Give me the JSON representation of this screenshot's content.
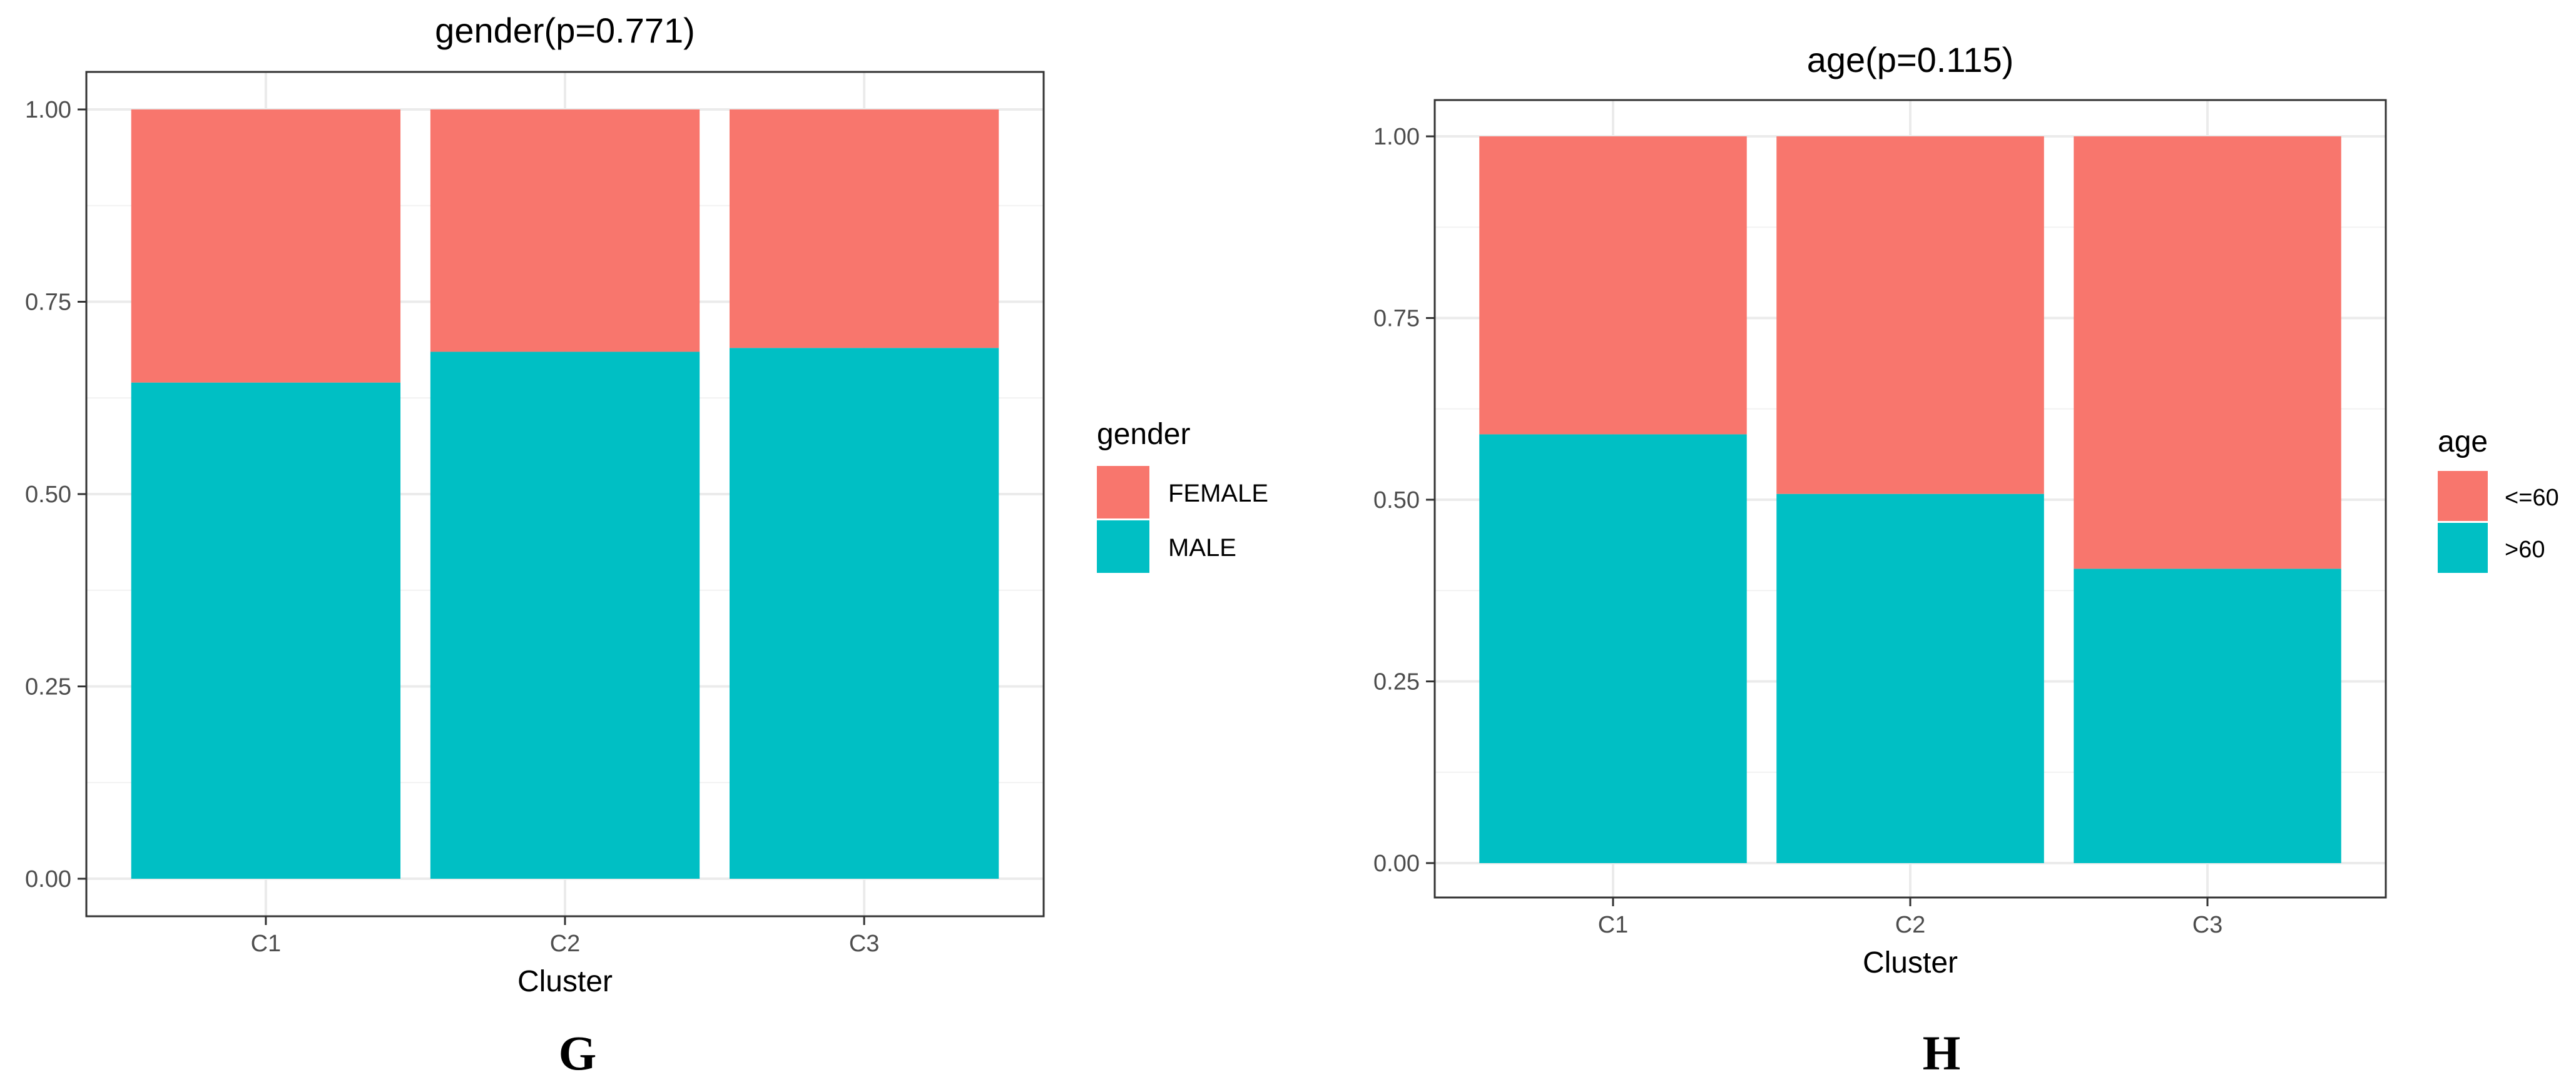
{
  "chart_data": [
    {
      "type": "bar",
      "stacked": true,
      "title": "gender(p=0.771)",
      "panel_label": "G",
      "xlabel": "Cluster",
      "ylabel": "",
      "categories": [
        "C1",
        "C2",
        "C3"
      ],
      "ylim": [
        0,
        1
      ],
      "yticks": [
        "0.00",
        "0.25",
        "0.50",
        "0.75",
        "1.00"
      ],
      "grid": true,
      "legend": {
        "title": "gender",
        "position": "right",
        "entries": [
          "FEMALE",
          "MALE"
        ]
      },
      "series": [
        {
          "name": "MALE",
          "color": "#00BFC4",
          "values": [
            0.645,
            0.685,
            0.69
          ]
        },
        {
          "name": "FEMALE",
          "color": "#F8766D",
          "values": [
            0.355,
            0.315,
            0.31
          ]
        }
      ]
    },
    {
      "type": "bar",
      "stacked": true,
      "title": "age(p=0.115)",
      "panel_label": "H",
      "xlabel": "Cluster",
      "ylabel": "",
      "categories": [
        "C1",
        "C2",
        "C3"
      ],
      "ylim": [
        0,
        1
      ],
      "yticks": [
        "0.00",
        "0.25",
        "0.50",
        "0.75",
        "1.00"
      ],
      "grid": true,
      "legend": {
        "title": "age",
        "position": "right",
        "entries": [
          "<=60",
          ">60"
        ]
      },
      "series": [
        {
          "name": ">60",
          "color": "#00BFC4",
          "values": [
            0.59,
            0.508,
            0.405
          ]
        },
        {
          "name": "<=60",
          "color": "#F8766D",
          "values": [
            0.41,
            0.492,
            0.595
          ]
        }
      ]
    }
  ]
}
